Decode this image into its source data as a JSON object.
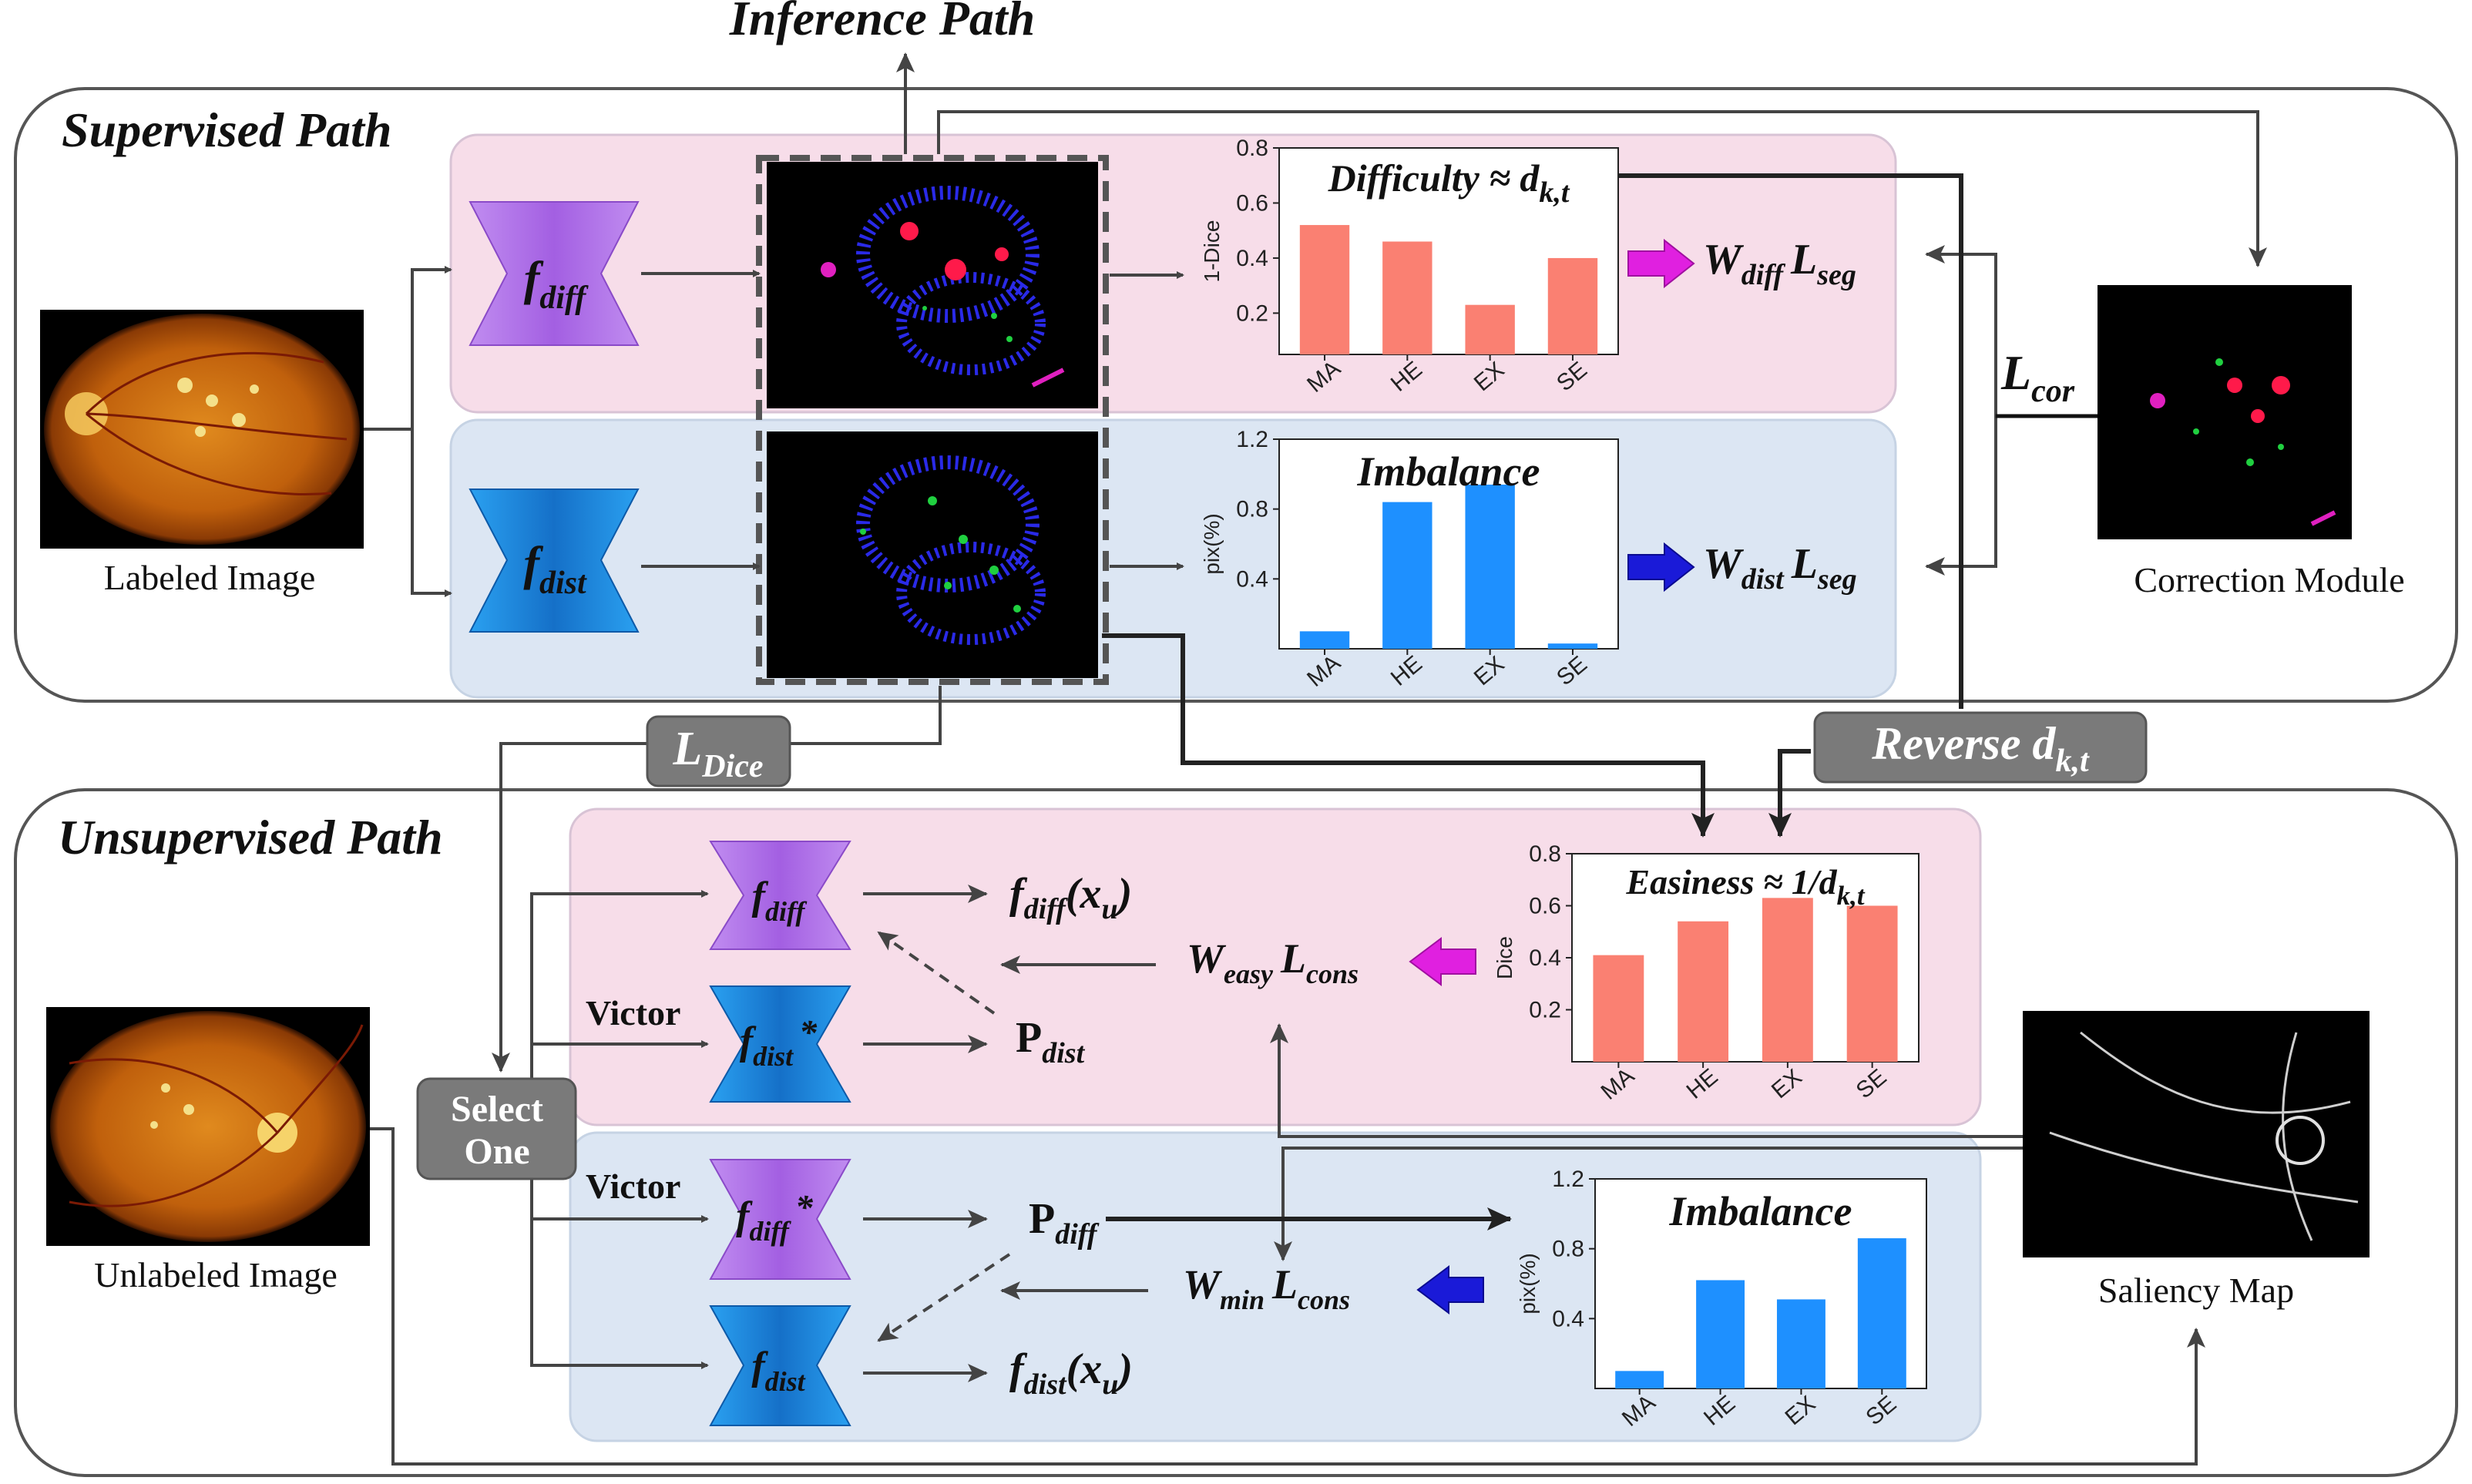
{
  "titles": {
    "inference": "Inference Path",
    "supervised": "Supervised Path",
    "unsupervised": "Unsupervised Path"
  },
  "captions": {
    "labeled": "Labeled Image",
    "unlabeled": "Unlabeled Image",
    "correction": "Correction Module",
    "saliency": "Saliency Map"
  },
  "models": {
    "f_diff": {
      "base": "f",
      "sub": "diff",
      "star": ""
    },
    "f_dist": {
      "base": "f",
      "sub": "dist",
      "star": ""
    },
    "f_diff_star": {
      "base": "f",
      "sub": "diff",
      "star": "*"
    },
    "f_dist_star": {
      "base": "f",
      "sub": "dist",
      "star": "*"
    }
  },
  "formulas": {
    "w_diff_lseg": {
      "w": "W",
      "wsub": "diff",
      "l": "L",
      "lsub": "seg"
    },
    "w_dist_lseg": {
      "w": "W",
      "wsub": "dist",
      "l": "L",
      "lsub": "seg"
    },
    "w_easy_lcons": {
      "w": "W",
      "wsub": "easy",
      "l": "L",
      "lsub": "cons"
    },
    "w_min_lcons": {
      "w": "W",
      "wsub": "min",
      "l": "L",
      "lsub": "cons"
    },
    "l_cor": {
      "base": "L",
      "sub": "cor"
    },
    "l_dice": {
      "base": "L",
      "sub": "Dice"
    },
    "reverse": {
      "text": "Reverse d",
      "sub": "k,t"
    },
    "fdiff_xu": {
      "base": "f",
      "sub": "diff",
      "arg": "(x",
      "argsub": "u",
      "close": ")"
    },
    "fdist_xu": {
      "base": "f",
      "sub": "dist",
      "arg": "(x",
      "argsub": "u",
      "close": ")"
    },
    "p_dist": {
      "base": "P",
      "sub": "dist"
    },
    "p_diff": {
      "base": "P",
      "sub": "diff"
    }
  },
  "labels": {
    "victor_1": "Victor",
    "victor_2": "Victor",
    "select_one_1": "Select",
    "select_one_2": "One"
  },
  "colors": {
    "pink_panel": "#f7dde9",
    "blue_panel": "#dce6f3",
    "purple_model": "#b073e8",
    "blue_model": "#1f8ee0",
    "salmon_bar": "#fa8072",
    "blue_bar": "#1e90ff",
    "magenta_arrow": "#e020e0",
    "navy_arrow": "#1a1ad8",
    "grey_label": "#7a7a7a"
  },
  "chart_data": [
    {
      "id": "difficulty",
      "type": "bar",
      "title": "Difficulty ≈ d",
      "title_sub": "k,t",
      "categories": [
        "MA",
        "HE",
        "EX",
        "SE"
      ],
      "values": [
        0.52,
        0.46,
        0.23,
        0.4
      ],
      "ylabel": "1-Dice",
      "ylim": [
        0.05,
        0.8
      ],
      "yticks": [
        "0.2",
        "0.4",
        "0.6",
        "0.8"
      ],
      "ytick_values": [
        0.2,
        0.4,
        0.6,
        0.8
      ],
      "color": "#fa8072"
    },
    {
      "id": "imbalance_top",
      "type": "bar",
      "title": "Imbalance",
      "title_sub": "",
      "categories": [
        "MA",
        "HE",
        "EX",
        "SE"
      ],
      "values": [
        0.1,
        0.84,
        0.94,
        0.03
      ],
      "ylabel": "pix(%)",
      "ylim": [
        0.0,
        1.2
      ],
      "yticks": [
        "0.4",
        "0.8",
        "1.2"
      ],
      "ytick_values": [
        0.4,
        0.8,
        1.2
      ],
      "color": "#1e90ff"
    },
    {
      "id": "easiness",
      "type": "bar",
      "title": "Easiness ≈ 1/d",
      "title_sub": "k,t",
      "categories": [
        "MA",
        "HE",
        "EX",
        "SE"
      ],
      "values": [
        0.41,
        0.54,
        0.63,
        0.6
      ],
      "ylabel": "Dice",
      "ylim": [
        0.0,
        0.8
      ],
      "yticks": [
        "0.2",
        "0.4",
        "0.6",
        "0.8"
      ],
      "ytick_values": [
        0.2,
        0.4,
        0.6,
        0.8
      ],
      "color": "#fa8072"
    },
    {
      "id": "imbalance_bottom",
      "type": "bar",
      "title": "Imbalance",
      "title_sub": "",
      "categories": [
        "MA",
        "HE",
        "EX",
        "SE"
      ],
      "values": [
        0.1,
        0.62,
        0.51,
        0.86
      ],
      "ylabel": "pix(%)",
      "ylim": [
        0.0,
        1.2
      ],
      "yticks": [
        "0.4",
        "0.8",
        "1.2"
      ],
      "ytick_values": [
        0.4,
        0.8,
        1.2
      ],
      "color": "#1e90ff"
    }
  ]
}
